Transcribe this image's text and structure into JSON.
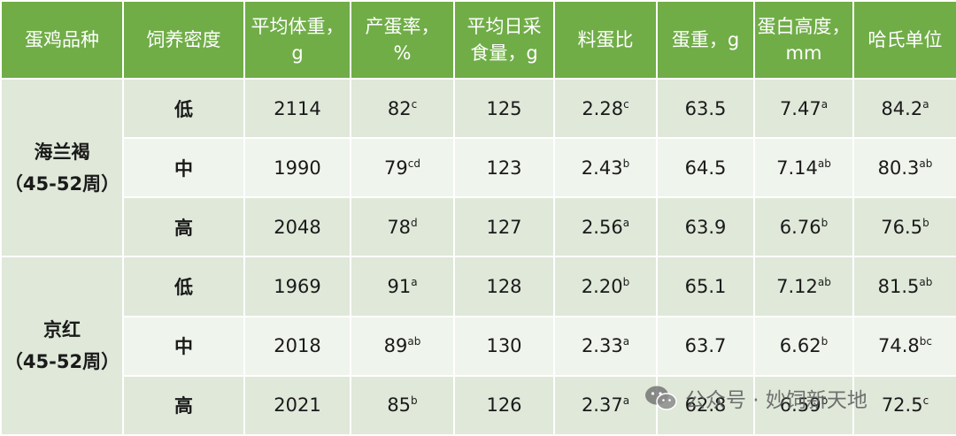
{
  "headers": [
    [
      "蛋鸡品种"
    ],
    [
      "饲养密度"
    ],
    [
      "平均体重，",
      "g"
    ],
    [
      "产蛋率，",
      "%"
    ],
    [
      "平均日采",
      "食量，g"
    ],
    [
      "料蛋比"
    ],
    [
      "蛋重，g"
    ],
    [
      "蛋白高度，",
      "mm"
    ],
    [
      "哈氏单位"
    ]
  ],
  "groups": [
    {
      "breed": [
        "海兰褐",
        "（45-52周）"
      ],
      "rows": [
        {
          "density": "低",
          "weight": "2114",
          "rate": "82",
          "rate_sup": "c",
          "feed": "125",
          "ratio": "2.28",
          "ratio_sup": "c",
          "egg_weight": "63.5",
          "albumen": "7.47",
          "albumen_sup": "a",
          "haugh": "84.2",
          "haugh_sup": "a"
        },
        {
          "density": "中",
          "weight": "1990",
          "rate": "79",
          "rate_sup": "cd",
          "feed": "123",
          "ratio": "2.43",
          "ratio_sup": "b",
          "egg_weight": "64.5",
          "albumen": "7.14",
          "albumen_sup": "ab",
          "haugh": "80.3",
          "haugh_sup": "ab"
        },
        {
          "density": "高",
          "weight": "2048",
          "rate": "78",
          "rate_sup": "d",
          "feed": "127",
          "ratio": "2.56",
          "ratio_sup": "a",
          "egg_weight": "63.9",
          "albumen": "6.76",
          "albumen_sup": "b",
          "haugh": "76.5",
          "haugh_sup": "b"
        }
      ]
    },
    {
      "breed": [
        "京红",
        "（45-52周）"
      ],
      "rows": [
        {
          "density": "低",
          "weight": "1969",
          "rate": "91",
          "rate_sup": "a",
          "feed": "128",
          "ratio": "2.20",
          "ratio_sup": "b",
          "egg_weight": "65.1",
          "albumen": "7.12",
          "albumen_sup": "ab",
          "haugh": "81.5",
          "haugh_sup": "ab"
        },
        {
          "density": "中",
          "weight": "2018",
          "rate": "89",
          "rate_sup": "ab",
          "feed": "130",
          "ratio": "2.33",
          "ratio_sup": "a",
          "egg_weight": "63.7",
          "albumen": "6.62",
          "albumen_sup": "b",
          "haugh": "74.8",
          "haugh_sup": "bc"
        },
        {
          "density": "高",
          "weight": "2021",
          "rate": "85",
          "rate_sup": "b",
          "feed": "126",
          "ratio": "2.37",
          "ratio_sup": "a",
          "egg_weight": "62.8",
          "albumen": "6.59",
          "albumen_sup": "b",
          "haugh": "72.5",
          "haugh_sup": "c"
        }
      ]
    }
  ],
  "watermark": {
    "text": "公众号 · 妙饲新天地",
    "icon": "wechat-icon"
  },
  "colors": {
    "header_bg": "#70ad47",
    "header_text": "#ffffff",
    "row_dark": "#dfe8d9",
    "row_light": "#eff4ec"
  }
}
